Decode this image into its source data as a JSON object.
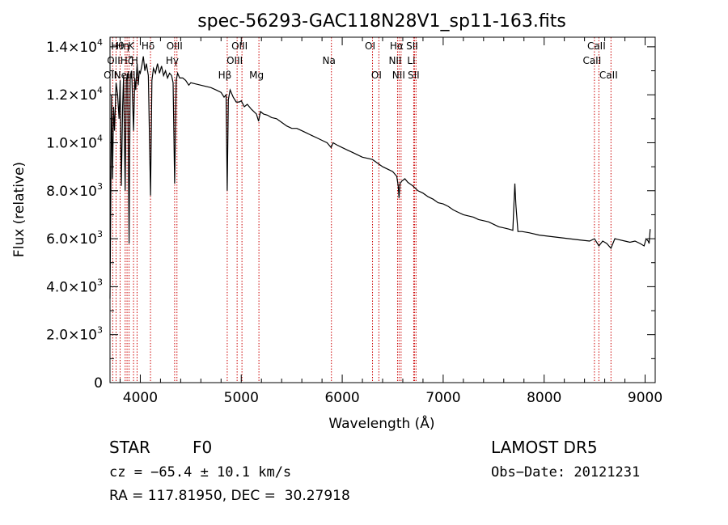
{
  "chart_data": {
    "type": "line",
    "title": "spec-56293-GAC118N28V1_sp11-163.fits",
    "xlabel": "Wavelength (Å)",
    "ylabel": "Flux (relative)",
    "xlim": [
      3700,
      9100
    ],
    "ylim": [
      0,
      14400
    ],
    "grid": false,
    "x_ticks": [
      4000,
      5000,
      6000,
      7000,
      8000,
      9000
    ],
    "x_tick_labels": [
      "4000",
      "5000",
      "6000",
      "7000",
      "8000",
      "9000"
    ],
    "y_ticks": [
      0,
      2000,
      4000,
      6000,
      8000,
      10000,
      12000,
      14000
    ],
    "y_tick_labels": [
      {
        "m": "0",
        "e": ""
      },
      {
        "m": "2.0×10",
        "e": "3"
      },
      {
        "m": "4.0×10",
        "e": "3"
      },
      {
        "m": "6.0×10",
        "e": "3"
      },
      {
        "m": "8.0×10",
        "e": "3"
      },
      {
        "m": "1.0×10",
        "e": "4"
      },
      {
        "m": "1.2×10",
        "e": "4"
      },
      {
        "m": "1.4×10",
        "e": "4"
      }
    ],
    "series": [
      {
        "x": [
          3700,
          3715,
          3725,
          3735,
          3745,
          3760,
          3775,
          3790,
          3800,
          3812,
          3825,
          3835,
          3850,
          3862,
          3875,
          3889,
          3900,
          3915,
          3933,
          3945,
          3955,
          3968,
          3980,
          3990,
          4000,
          4015,
          4030,
          4045,
          4060,
          4080,
          4101,
          4115,
          4130,
          4150,
          4170,
          4190,
          4210,
          4230,
          4250,
          4270,
          4290,
          4310,
          4325,
          4340,
          4355,
          4370,
          4390,
          4420,
          4450,
          4480,
          4500,
          4550,
          4600,
          4650,
          4700,
          4750,
          4800,
          4830,
          4850,
          4861,
          4872,
          4890,
          4920,
          4950,
          4980,
          5000,
          5030,
          5060,
          5100,
          5150,
          5172,
          5190,
          5220,
          5260,
          5300,
          5350,
          5400,
          5450,
          5500,
          5550,
          5600,
          5650,
          5700,
          5750,
          5800,
          5850,
          5890,
          5910,
          5950,
          6000,
          6050,
          6100,
          6150,
          6200,
          6250,
          6300,
          6350,
          6400,
          6450,
          6500,
          6540,
          6555,
          6563,
          6572,
          6590,
          6620,
          6650,
          6700,
          6750,
          6800,
          6850,
          6900,
          6950,
          7000,
          7050,
          7100,
          7150,
          7200,
          7250,
          7300,
          7350,
          7400,
          7450,
          7500,
          7550,
          7600,
          7650,
          7690,
          7700,
          7710,
          7720,
          7740,
          7780,
          7850,
          7950,
          8050,
          8150,
          8250,
          8350,
          8450,
          8498,
          8542,
          8580,
          8620,
          8662,
          8700,
          8750,
          8800,
          8850,
          8900,
          8950,
          8990,
          9010,
          9030,
          9040,
          9050
        ],
        "y": [
          3500,
          12000,
          8500,
          11500,
          10500,
          12500,
          12000,
          11000,
          12600,
          8200,
          11500,
          12800,
          8000,
          12600,
          12900,
          5800,
          12800,
          13000,
          10500,
          12700,
          12200,
          13300,
          12400,
          13000,
          12900,
          13200,
          13600,
          13000,
          13300,
          12800,
          7800,
          12600,
          13100,
          12900,
          13300,
          12900,
          13200,
          12800,
          13000,
          12700,
          12900,
          12800,
          12500,
          8300,
          12600,
          12900,
          12700,
          12700,
          12600,
          12400,
          12500,
          12450,
          12400,
          12350,
          12300,
          12200,
          12100,
          11900,
          12000,
          8000,
          11800,
          12200,
          11900,
          11700,
          11700,
          11750,
          11500,
          11600,
          11400,
          11200,
          10900,
          11300,
          11200,
          11150,
          11050,
          11000,
          10850,
          10700,
          10600,
          10600,
          10500,
          10400,
          10300,
          10200,
          10100,
          10000,
          9800,
          10000,
          9900,
          9800,
          9700,
          9600,
          9500,
          9400,
          9350,
          9300,
          9150,
          9000,
          8900,
          8800,
          8600,
          8200,
          7700,
          8300,
          8400,
          8500,
          8350,
          8200,
          8000,
          7900,
          7750,
          7650,
          7500,
          7450,
          7350,
          7200,
          7100,
          7000,
          6950,
          6900,
          6800,
          6750,
          6700,
          6600,
          6500,
          6450,
          6400,
          6350,
          7400,
          8300,
          7400,
          6300,
          6300,
          6250,
          6150,
          6100,
          6050,
          6000,
          5950,
          5900,
          6000,
          5700,
          5900,
          5800,
          5600,
          6000,
          5950,
          5900,
          5850,
          5900,
          5800,
          5700,
          6000,
          5900,
          5800,
          6400
        ]
      }
    ],
    "line_labels": [
      {
        "x": 3727,
        "label": "OII",
        "row": 2
      },
      {
        "x": 3760,
        "label": "OII",
        "row": 1
      },
      {
        "x": 3800,
        "label": "Hθ",
        "row": 0
      },
      {
        "x": 3850,
        "label": "Hη",
        "row": 0
      },
      {
        "x": 3869,
        "label": "NeIII",
        "row": 2
      },
      {
        "x": 3889,
        "label": "Hζ",
        "row": 1
      },
      {
        "x": 3933,
        "label": "K",
        "row": 0
      },
      {
        "x": 3968,
        "label": "H",
        "row": 1
      },
      {
        "x": 4101,
        "label": "Hδ",
        "row": 0
      },
      {
        "x": 4340,
        "label": "Hγ",
        "row": 1
      },
      {
        "x": 4363,
        "label": "OIII",
        "row": 0
      },
      {
        "x": 4861,
        "label": "Hβ",
        "row": 2
      },
      {
        "x": 4959,
        "label": "OIII",
        "row": 1
      },
      {
        "x": 5007,
        "label": "OIII",
        "row": 0
      },
      {
        "x": 5175,
        "label": "Mg",
        "row": 2
      },
      {
        "x": 5893,
        "label": "Na",
        "row": 1
      },
      {
        "x": 6300,
        "label": "OI",
        "row": 0
      },
      {
        "x": 6363,
        "label": "OI",
        "row": 2
      },
      {
        "x": 6548,
        "label": "NII",
        "row": 1
      },
      {
        "x": 6563,
        "label": "Hα",
        "row": 0
      },
      {
        "x": 6583,
        "label": "NII",
        "row": 2
      },
      {
        "x": 6708,
        "label": "Li",
        "row": 1
      },
      {
        "x": 6716,
        "label": "SII",
        "row": 0
      },
      {
        "x": 6731,
        "label": "SII",
        "row": 2
      },
      {
        "x": 8498,
        "label": "CaII",
        "row": 1
      },
      {
        "x": 8542,
        "label": "CaII",
        "row": 0
      },
      {
        "x": 8662,
        "label": "CaII",
        "row": 2
      }
    ],
    "line_color": "#000000",
    "marker_color": "#cc0000"
  },
  "info": {
    "class_label": "STAR",
    "subclass": "F0",
    "survey": "LAMOST DR5",
    "cz": "cz = −65.4 ± 10.1 km/s",
    "obs_date": "Obs−Date: 20121231",
    "coords": "RA = 117.81950, DEC =  30.27918"
  }
}
